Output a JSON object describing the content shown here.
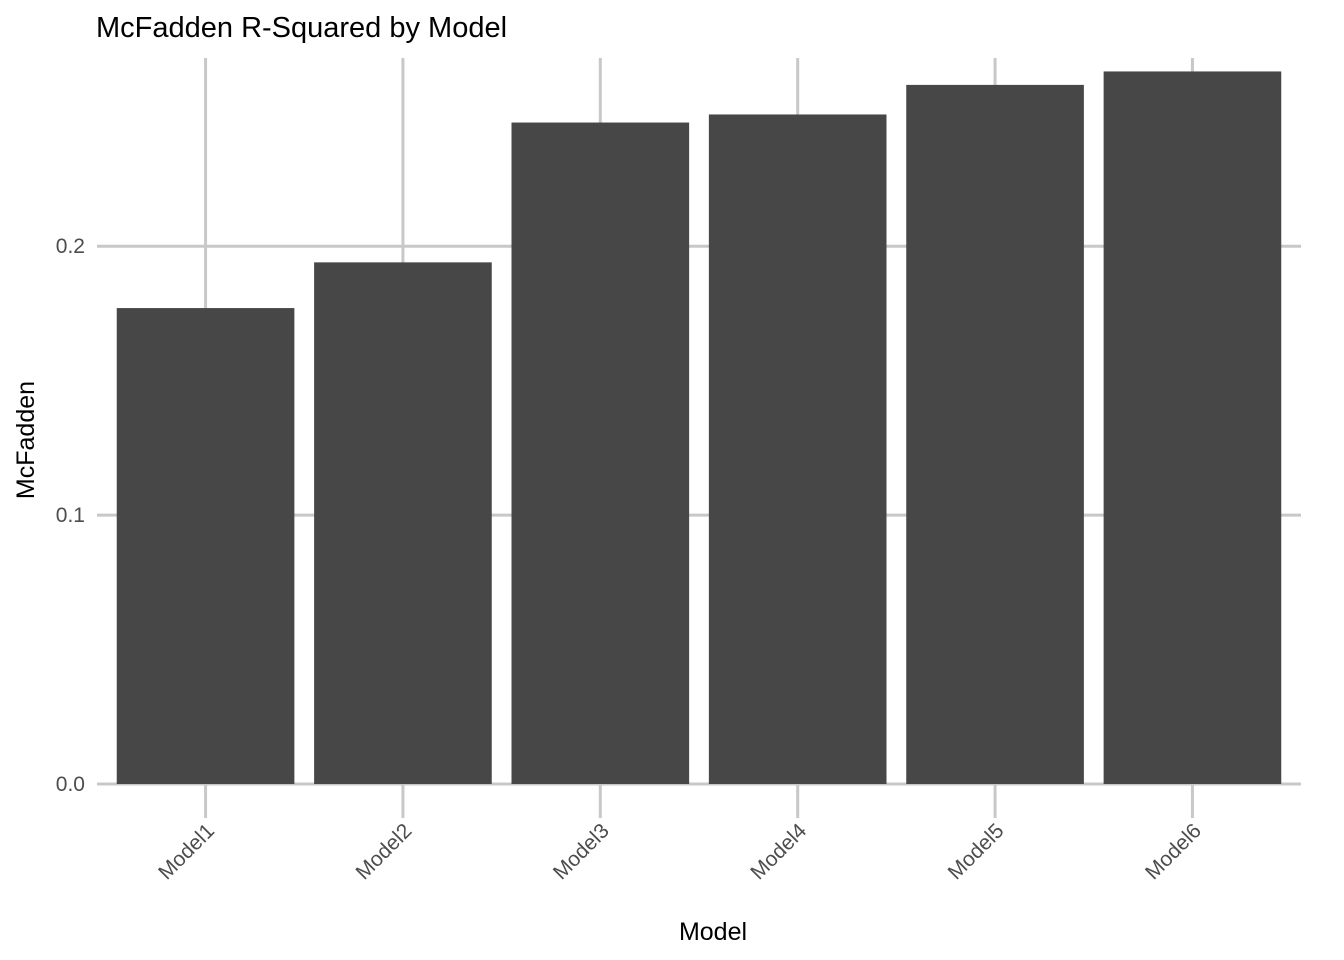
{
  "chart_data": {
    "type": "bar",
    "title": "McFadden R-Squared by Model",
    "xlabel": "Model",
    "ylabel": "McFadden",
    "categories": [
      "Model1",
      "Model2",
      "Model3",
      "Model4",
      "Model5",
      "Model6"
    ],
    "values": [
      0.177,
      0.194,
      0.246,
      0.249,
      0.26,
      0.265
    ],
    "ylim": [
      0,
      0.27
    ],
    "yticks": [
      0.0,
      0.1,
      0.2
    ],
    "ytick_labels": [
      "0.0",
      "0.1",
      "0.2"
    ],
    "grid": true,
    "bar_color": "#474747",
    "grid_color": "#c8c8c8",
    "legend": "none"
  }
}
